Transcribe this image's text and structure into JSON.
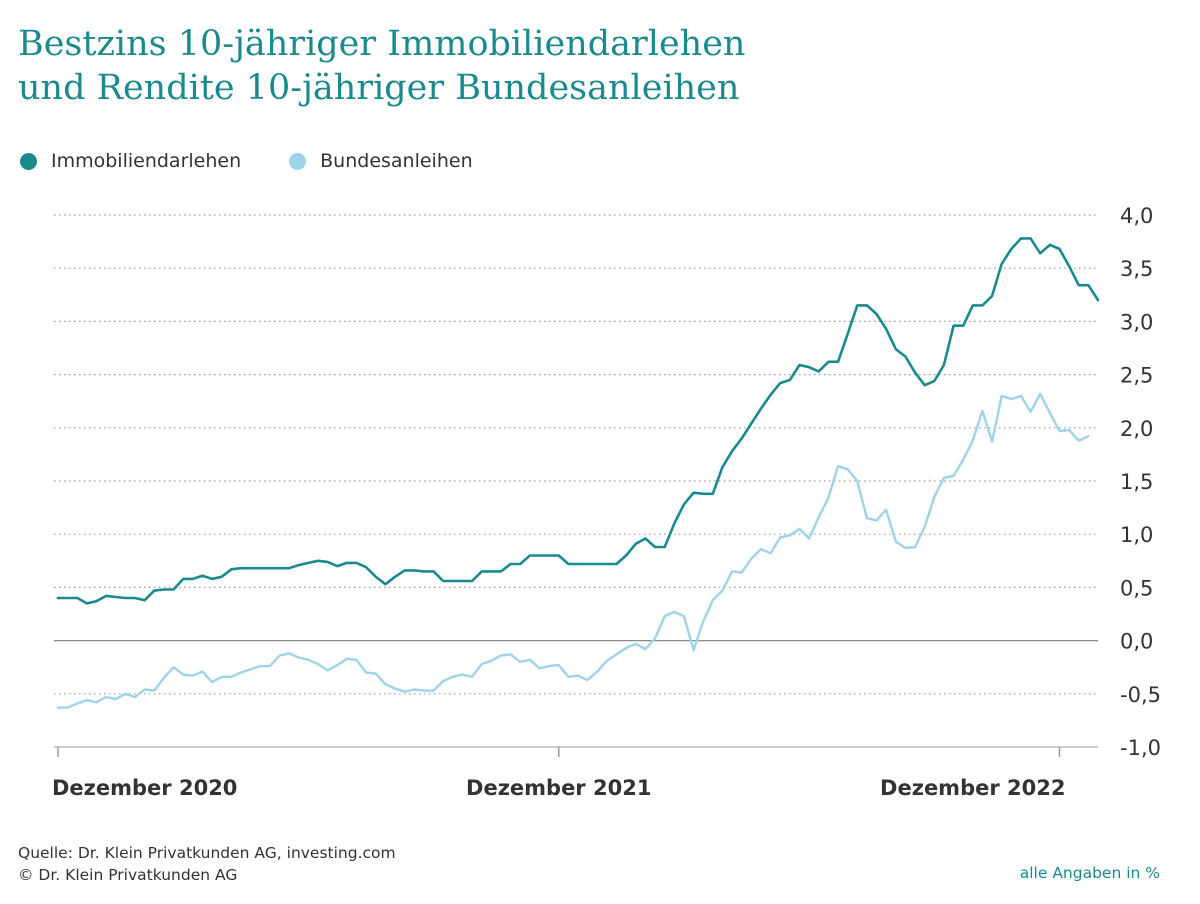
{
  "title_lines": [
    "Bestzins 10-jähriger Immobiliendarlehen",
    "und Rendite 10-jähriger Bundesanleihen"
  ],
  "source": "Quelle: Dr. Klein Privatkunden AG, investing.com",
  "copyright": "© Dr. Klein Privatkunden AG",
  "unit_note": "alle Angaben in %",
  "colors": {
    "accent": "#1a8a8f",
    "light": "#9fd3e9"
  },
  "chart_data": {
    "type": "line",
    "title": "Bestzins 10-jähriger Immobiliendarlehen und Rendite 10-jähriger Bundesanleihen",
    "ylim": [
      -1.0,
      4.0
    ],
    "y_ticks": [
      "4,0",
      "3,5",
      "3,0",
      "2,5",
      "2,0",
      "1,5",
      "1,0",
      "0,5",
      "0,0",
      "-0,5",
      "-1,0"
    ],
    "y_tick_values": [
      4.0,
      3.5,
      3.0,
      2.5,
      2.0,
      1.5,
      1.0,
      0.5,
      0.0,
      -0.5,
      -1.0
    ],
    "x_labels": [
      "Dezember 2020",
      "Dezember 2021",
      "Dezember 2022"
    ],
    "x_label_positions": [
      0,
      52,
      104
    ],
    "grid": "dotted horizontal",
    "legend_placement": "top-left",
    "series": [
      {
        "name": "Immobiliendarlehen",
        "color": "#1a8a8f",
        "values": [
          0.4,
          0.4,
          0.4,
          0.35,
          0.37,
          0.42,
          0.41,
          0.4,
          0.4,
          0.38,
          0.47,
          0.48,
          0.48,
          0.58,
          0.58,
          0.61,
          0.58,
          0.6,
          0.67,
          0.68,
          0.68,
          0.68,
          0.68,
          0.68,
          0.68,
          0.71,
          0.73,
          0.75,
          0.74,
          0.7,
          0.73,
          0.73,
          0.69,
          0.6,
          0.53,
          0.6,
          0.66,
          0.66,
          0.65,
          0.65,
          0.56,
          0.56,
          0.56,
          0.56,
          0.65,
          0.65,
          0.65,
          0.72,
          0.72,
          0.8,
          0.8,
          0.8,
          0.8,
          0.72,
          0.72,
          0.72,
          0.72,
          0.72,
          0.72,
          0.8,
          0.91,
          0.96,
          0.88,
          0.88,
          1.1,
          1.28,
          1.39,
          1.38,
          1.38,
          1.63,
          1.78,
          1.9,
          2.04,
          2.18,
          2.31,
          2.42,
          2.45,
          2.59,
          2.57,
          2.53,
          2.62,
          2.62,
          2.88,
          3.15,
          3.15,
          3.07,
          2.93,
          2.74,
          2.67,
          2.52,
          2.4,
          2.44,
          2.59,
          2.96,
          2.96,
          3.15,
          3.15,
          3.24,
          3.54,
          3.68,
          3.78,
          3.78,
          3.64,
          3.72,
          3.68,
          3.52,
          3.34,
          3.34,
          3.2
        ]
      },
      {
        "name": "Bundesanleihen",
        "color": "#9fd3e9",
        "values": [
          -0.63,
          -0.63,
          -0.59,
          -0.56,
          -0.58,
          -0.53,
          -0.55,
          -0.5,
          -0.53,
          -0.46,
          -0.47,
          -0.35,
          -0.25,
          -0.32,
          -0.33,
          -0.29,
          -0.39,
          -0.34,
          -0.34,
          -0.3,
          -0.27,
          -0.24,
          -0.24,
          -0.14,
          -0.12,
          -0.16,
          -0.18,
          -0.22,
          -0.28,
          -0.23,
          -0.17,
          -0.18,
          -0.3,
          -0.31,
          -0.41,
          -0.45,
          -0.48,
          -0.46,
          -0.47,
          -0.47,
          -0.38,
          -0.34,
          -0.32,
          -0.34,
          -0.22,
          -0.19,
          -0.14,
          -0.13,
          -0.2,
          -0.18,
          -0.26,
          -0.24,
          -0.23,
          -0.34,
          -0.33,
          -0.37,
          -0.29,
          -0.19,
          -0.13,
          -0.07,
          -0.03,
          -0.08,
          0.02,
          0.23,
          0.27,
          0.23,
          -0.09,
          0.18,
          0.38,
          0.47,
          0.65,
          0.64,
          0.77,
          0.86,
          0.82,
          0.97,
          0.99,
          1.05,
          0.96,
          1.16,
          1.34,
          1.64,
          1.61,
          1.5,
          1.15,
          1.13,
          1.23,
          0.93,
          0.87,
          0.88,
          1.07,
          1.35,
          1.53,
          1.55,
          1.7,
          1.88,
          2.16,
          1.87,
          2.3,
          2.27,
          2.3,
          2.15,
          2.32,
          2.14,
          1.97,
          1.98,
          1.88,
          1.92
        ]
      }
    ]
  }
}
